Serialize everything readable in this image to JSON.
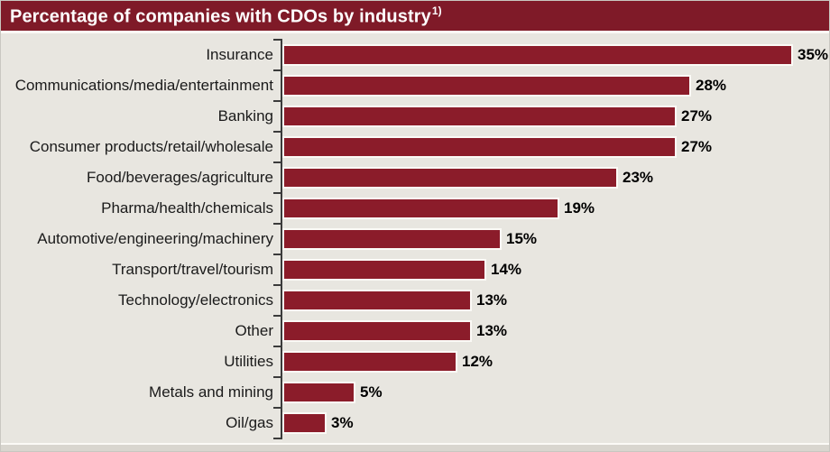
{
  "header": {
    "title": "Percentage of companies with CDOs by industry",
    "footnote_marker": "1)"
  },
  "chart_data": {
    "type": "bar",
    "orientation": "horizontal",
    "title": "Percentage of companies with CDOs by industry 1)",
    "categories": [
      "Insurance",
      "Communications/media/entertainment",
      "Banking",
      "Consumer products/retail/wholesale",
      "Food/beverages/agriculture",
      "Pharma/health/chemicals",
      "Automotive/engineering/machinery",
      "Transport/travel/tourism",
      "Technology/electronics",
      "Other",
      "Utilities",
      "Metals and mining",
      "Oil/gas"
    ],
    "values": [
      35,
      28,
      27,
      27,
      23,
      19,
      15,
      14,
      13,
      13,
      12,
      5,
      3
    ],
    "value_suffix": "%",
    "xlim": [
      0,
      35
    ],
    "grid": false,
    "legend": false,
    "data_labels": true,
    "colors": {
      "bar": "#8B1C2A",
      "bar_border": "#FBFAF6",
      "header_bg": "#7F1A28",
      "header_text": "#FFFFFF",
      "background": "#E8E6E0",
      "axis": "#3B3B3B",
      "category_text": "#1A1A1A",
      "value_text": "#000000"
    }
  }
}
